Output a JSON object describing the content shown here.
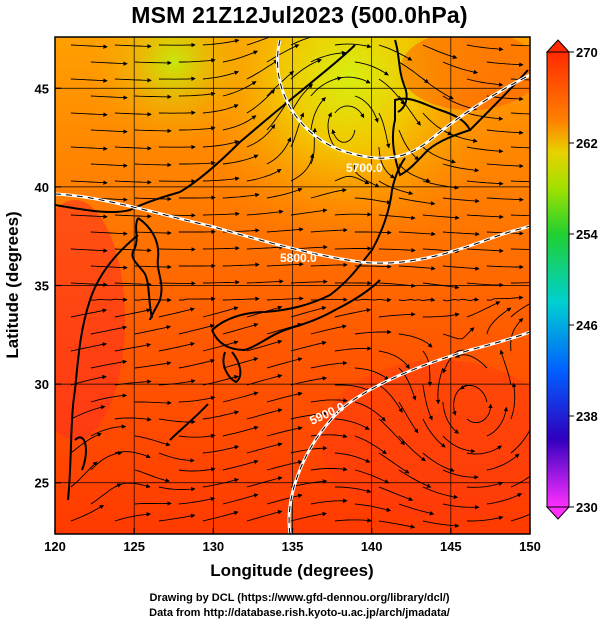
{
  "title": "MSM 21Z12Jul2023 (500.0hPa)",
  "map": {
    "xlabel": "Longitude (degrees)",
    "ylabel": "Latitude  (degrees)",
    "xlim": [
      120,
      150
    ],
    "ylim": [
      22.4,
      47.6
    ],
    "xticks": [
      "120",
      "125",
      "130",
      "135",
      "140",
      "145",
      "150"
    ],
    "yticks": [
      "25",
      "30",
      "35",
      "40",
      "45"
    ],
    "contours": [
      {
        "label": "5700.0"
      },
      {
        "label": "5800.0"
      },
      {
        "label": "5900.0"
      }
    ],
    "colorbar": {
      "min": 230,
      "max": 270,
      "ticks": [
        "270",
        "262",
        "254",
        "246",
        "238",
        "230"
      ]
    }
  },
  "credits": {
    "line1": "Drawing by DCL (https://www.gfd-dennou.org/library/dcl/)",
    "line2": "Data from http://database.rish.kyoto-u.ac.jp/arch/jmadata/"
  }
}
